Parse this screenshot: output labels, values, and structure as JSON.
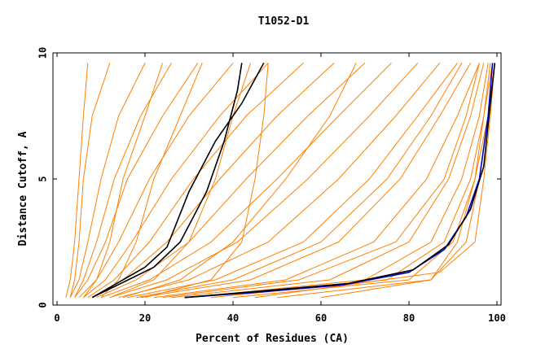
{
  "chart_data": {
    "type": "line",
    "title": "T1052-D1",
    "xlabel": "Percent of Residues (CA)",
    "ylabel": "Distance Cutoff, A",
    "xlim": [
      0,
      100
    ],
    "ylim": [
      0,
      10
    ],
    "x_ticks": [
      "0",
      "20",
      "40",
      "60",
      "80",
      "100"
    ],
    "y_ticks": [
      "0",
      "5",
      "10"
    ],
    "grid": false,
    "legend": "none",
    "colors": {
      "orange": "#ff8000",
      "black": "#000000",
      "blue": "#0000cc"
    },
    "series": [
      {
        "color": "#ff8000",
        "x": [
          2,
          3,
          4,
          5,
          6,
          7
        ],
        "y": [
          0.3,
          1.0,
          2.5,
          5.0,
          7.5,
          9.6
        ]
      },
      {
        "color": "#ff8000",
        "x": [
          3,
          4,
          5,
          6,
          8,
          12
        ],
        "y": [
          0.3,
          1.0,
          2.5,
          5.0,
          7.5,
          9.6
        ]
      },
      {
        "color": "#ff8000",
        "x": [
          3,
          5,
          7,
          10,
          14,
          20
        ],
        "y": [
          0.3,
          1.0,
          2.5,
          5.0,
          7.5,
          9.6
        ]
      },
      {
        "color": "#ff8000",
        "x": [
          4,
          6,
          9,
          13,
          19,
          26
        ],
        "y": [
          0.3,
          1.0,
          2.5,
          5.0,
          7.5,
          9.6
        ]
      },
      {
        "color": "#ff8000",
        "x": [
          4,
          7,
          11,
          16,
          24,
          32
        ],
        "y": [
          0.3,
          1.0,
          2.5,
          5.0,
          7.5,
          9.6
        ]
      },
      {
        "color": "#ff8000",
        "x": [
          5,
          9,
          14,
          21,
          30,
          40
        ],
        "y": [
          0.3,
          1.0,
          2.5,
          5.0,
          7.5,
          9.6
        ]
      },
      {
        "color": "#ff8000",
        "x": [
          6,
          11,
          17,
          26,
          37,
          48
        ],
        "y": [
          0.3,
          1.0,
          2.5,
          5.0,
          7.5,
          9.6
        ]
      },
      {
        "color": "#ff8000",
        "x": [
          7,
          13,
          21,
          31,
          43,
          56
        ],
        "y": [
          0.3,
          1.0,
          2.5,
          5.0,
          7.5,
          9.6
        ]
      },
      {
        "color": "#ff8000",
        "x": [
          8,
          15,
          25,
          37,
          50,
          63
        ],
        "y": [
          0.3,
          1.0,
          2.5,
          5.0,
          7.5,
          9.6
        ]
      },
      {
        "color": "#ff8000",
        "x": [
          9,
          18,
          30,
          43,
          57,
          70
        ],
        "y": [
          0.3,
          1.0,
          2.5,
          5.0,
          7.5,
          9.6
        ]
      },
      {
        "color": "#ff8000",
        "x": [
          10,
          21,
          35,
          50,
          64,
          76
        ],
        "y": [
          0.3,
          1.0,
          2.5,
          5.0,
          7.5,
          9.6
        ]
      },
      {
        "color": "#ff8000",
        "x": [
          12,
          25,
          41,
          57,
          71,
          82
        ],
        "y": [
          0.3,
          1.0,
          2.5,
          5.0,
          7.5,
          9.6
        ]
      },
      {
        "color": "#ff8000",
        "x": [
          14,
          30,
          48,
          64,
          77,
          87
        ],
        "y": [
          0.3,
          1.0,
          2.5,
          5.0,
          7.5,
          9.6
        ]
      },
      {
        "color": "#ff8000",
        "x": [
          16,
          36,
          56,
          71,
          82,
          91
        ],
        "y": [
          0.3,
          1.0,
          2.5,
          5.0,
          7.5,
          9.6
        ]
      },
      {
        "color": "#ff8000",
        "x": [
          19,
          44,
          64,
          78,
          87,
          94
        ],
        "y": [
          0.3,
          1.0,
          2.5,
          5.0,
          7.5,
          9.6
        ]
      },
      {
        "color": "#ff8000",
        "x": [
          22,
          52,
          72,
          84,
          91,
          96
        ],
        "y": [
          0.3,
          1.0,
          2.5,
          5.0,
          7.5,
          9.6
        ]
      },
      {
        "color": "#ff8000",
        "x": [
          26,
          62,
          80,
          89,
          94,
          97
        ],
        "y": [
          0.3,
          1.0,
          2.5,
          5.0,
          7.5,
          9.6
        ]
      },
      {
        "color": "#ff8000",
        "x": [
          30,
          70,
          85,
          92,
          96,
          98
        ],
        "y": [
          0.3,
          1.0,
          2.5,
          5.0,
          7.5,
          9.6
        ]
      },
      {
        "color": "#ff8000",
        "x": [
          35,
          75,
          88,
          94,
          97,
          99
        ],
        "y": [
          0.3,
          1.0,
          2.5,
          5.0,
          7.5,
          9.6
        ]
      },
      {
        "color": "#ff8000",
        "x": [
          40,
          80,
          90,
          95,
          98,
          99
        ],
        "y": [
          0.3,
          1.0,
          2.5,
          5.0,
          7.5,
          9.6
        ]
      },
      {
        "color": "#ff8000",
        "x": [
          50,
          85,
          93,
          96,
          98,
          99.5
        ],
        "y": [
          0.3,
          1.0,
          2.5,
          5.0,
          7.5,
          9.6
        ]
      },
      {
        "color": "#ff8000",
        "x": [
          45,
          87,
          95,
          97,
          98.5,
          99.5
        ],
        "y": [
          0.3,
          1.3,
          2.5,
          5.0,
          7.5,
          9.6
        ]
      },
      {
        "color": "#ff8000",
        "x": [
          20,
          35,
          42,
          45,
          47,
          48
        ],
        "y": [
          0.3,
          1.0,
          2.5,
          5.0,
          7.5,
          9.6
        ]
      },
      {
        "color": "#ff8000",
        "x": [
          10,
          14,
          18,
          22,
          28,
          33
        ],
        "y": [
          0.3,
          1.0,
          2.5,
          5.0,
          7.5,
          9.6
        ]
      },
      {
        "color": "#ff8000",
        "x": [
          6,
          9,
          12,
          15,
          20,
          24
        ],
        "y": [
          0.3,
          1.0,
          2.5,
          5.0,
          7.5,
          9.6
        ]
      },
      {
        "color": "#ff8000",
        "x": [
          15,
          28,
          40,
          52,
          62,
          68
        ],
        "y": [
          0.3,
          1.0,
          2.5,
          5.0,
          7.5,
          9.6
        ]
      },
      {
        "color": "#ff8000",
        "x": [
          18,
          40,
          60,
          75,
          85,
          92
        ],
        "y": [
          0.3,
          1.0,
          2.5,
          5.0,
          7.5,
          9.6
        ]
      },
      {
        "color": "#ff8000",
        "x": [
          24,
          55,
          77,
          88,
          93,
          96
        ],
        "y": [
          0.3,
          1.0,
          2.5,
          5.0,
          7.5,
          9.6
        ]
      },
      {
        "color": "#ff8000",
        "x": [
          60,
          85,
          91,
          95,
          97,
          98.5
        ],
        "y": [
          0.3,
          1.0,
          2.5,
          5.0,
          7.5,
          9.6
        ]
      },
      {
        "color": "#ff8000",
        "x": [
          12,
          22,
          30,
          36,
          40,
          44
        ],
        "y": [
          0.3,
          1.0,
          2.5,
          5.0,
          7.5,
          9.6
        ]
      },
      {
        "color": "#000000",
        "x": [
          8,
          15,
          22,
          28,
          34,
          38,
          41,
          42
        ],
        "y": [
          0.3,
          0.9,
          1.5,
          2.5,
          4.5,
          6.5,
          8.5,
          9.6
        ]
      },
      {
        "color": "#000000",
        "x": [
          8,
          14,
          20,
          25,
          30,
          36,
          42,
          47
        ],
        "y": [
          0.3,
          0.9,
          1.5,
          2.3,
          4.5,
          6.5,
          8.0,
          9.6
        ]
      },
      {
        "color": "#0000cc",
        "x": [
          29,
          45,
          65,
          80,
          88,
          93,
          96,
          98,
          99
        ],
        "y": [
          0.3,
          0.5,
          0.8,
          1.3,
          2.2,
          3.5,
          5.0,
          7.5,
          9.6
        ]
      },
      {
        "color": "#000000",
        "x": [
          29,
          46,
          66,
          81,
          89,
          94,
          97,
          98.5,
          99.5
        ],
        "y": [
          0.3,
          0.55,
          0.85,
          1.4,
          2.4,
          3.8,
          5.5,
          8.0,
          9.6
        ]
      }
    ]
  }
}
